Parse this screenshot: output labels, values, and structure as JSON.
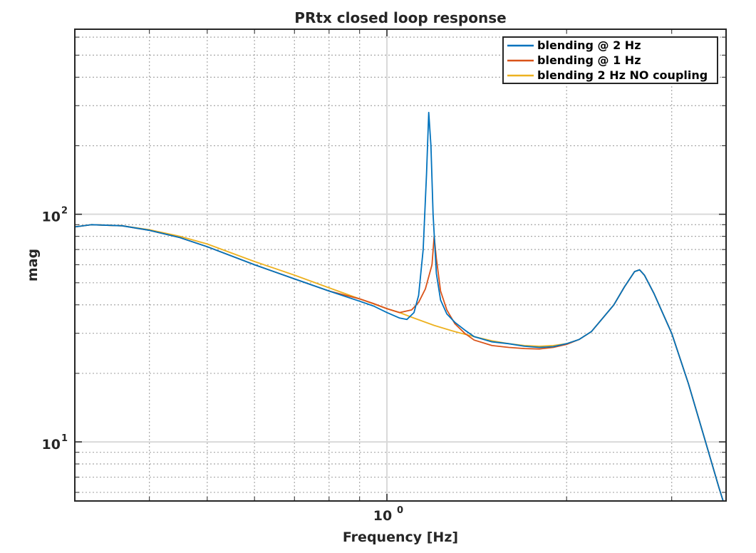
{
  "chart_data": {
    "type": "line",
    "title": "PRtx closed loop response",
    "xlabel": "Frequency [Hz]",
    "ylabel": "mag",
    "xscale": "log",
    "yscale": "log",
    "xlim": [
      0.3,
      3.7
    ],
    "ylim": [
      5.5,
      650
    ],
    "grid": true,
    "legend_position": "top-right",
    "x_ticks": [
      {
        "base": "10",
        "exp": "0",
        "value": 1
      }
    ],
    "y_ticks": [
      {
        "base": "10",
        "exp": "1",
        "value": 10
      },
      {
        "base": "10",
        "exp": "2",
        "value": 100
      }
    ],
    "series": [
      {
        "name": "blending @ 2 Hz",
        "color": "#0072BD",
        "points": [
          [
            0.3,
            88
          ],
          [
            0.32,
            90
          ],
          [
            0.36,
            89
          ],
          [
            0.4,
            85
          ],
          [
            0.45,
            79
          ],
          [
            0.5,
            72
          ],
          [
            0.6,
            60
          ],
          [
            0.7,
            52
          ],
          [
            0.8,
            46
          ],
          [
            0.9,
            41.5
          ],
          [
            0.95,
            39.5
          ],
          [
            1.0,
            37
          ],
          [
            1.05,
            35
          ],
          [
            1.08,
            34.5
          ],
          [
            1.11,
            37
          ],
          [
            1.13,
            44
          ],
          [
            1.15,
            70
          ],
          [
            1.165,
            150
          ],
          [
            1.175,
            280
          ],
          [
            1.185,
            200
          ],
          [
            1.195,
            100
          ],
          [
            1.21,
            55
          ],
          [
            1.23,
            42
          ],
          [
            1.26,
            36.5
          ],
          [
            1.3,
            33.5
          ],
          [
            1.35,
            31
          ],
          [
            1.4,
            29
          ],
          [
            1.5,
            27.5
          ],
          [
            1.6,
            27
          ],
          [
            1.7,
            26.3
          ],
          [
            1.8,
            26
          ],
          [
            1.9,
            26.2
          ],
          [
            2.0,
            27
          ],
          [
            2.1,
            28.2
          ],
          [
            2.2,
            30.5
          ],
          [
            2.3,
            35
          ],
          [
            2.4,
            40
          ],
          [
            2.5,
            48
          ],
          [
            2.6,
            56
          ],
          [
            2.65,
            57
          ],
          [
            2.7,
            54
          ],
          [
            2.8,
            45
          ],
          [
            3.0,
            30
          ],
          [
            3.2,
            18
          ],
          [
            3.4,
            10.5
          ],
          [
            3.6,
            6.3
          ],
          [
            3.7,
            5.0
          ]
        ]
      },
      {
        "name": "blending @ 1 Hz",
        "color": "#D95319",
        "points": [
          [
            0.3,
            88
          ],
          [
            0.32,
            90
          ],
          [
            0.36,
            89
          ],
          [
            0.4,
            85
          ],
          [
            0.45,
            79
          ],
          [
            0.5,
            72
          ],
          [
            0.6,
            60
          ],
          [
            0.7,
            52
          ],
          [
            0.8,
            46
          ],
          [
            0.9,
            42.5
          ],
          [
            0.95,
            40.5
          ],
          [
            1.0,
            38.5
          ],
          [
            1.05,
            37
          ],
          [
            1.1,
            38
          ],
          [
            1.13,
            41
          ],
          [
            1.16,
            47
          ],
          [
            1.19,
            60
          ],
          [
            1.2,
            80
          ],
          [
            1.21,
            64
          ],
          [
            1.23,
            46
          ],
          [
            1.26,
            38
          ],
          [
            1.3,
            33
          ],
          [
            1.35,
            30
          ],
          [
            1.4,
            28
          ],
          [
            1.5,
            26.5
          ],
          [
            1.6,
            26
          ],
          [
            1.7,
            25.7
          ],
          [
            1.8,
            25.6
          ],
          [
            1.9,
            26
          ],
          [
            2.0,
            26.8
          ],
          [
            2.1,
            28.2
          ],
          [
            2.2,
            30.5
          ],
          [
            2.3,
            35
          ],
          [
            2.4,
            40
          ],
          [
            2.5,
            48
          ],
          [
            2.6,
            56
          ],
          [
            2.65,
            57
          ],
          [
            2.7,
            54
          ],
          [
            2.8,
            45
          ],
          [
            3.0,
            30
          ],
          [
            3.2,
            18
          ],
          [
            3.4,
            10.5
          ],
          [
            3.6,
            6.3
          ],
          [
            3.7,
            5.0
          ]
        ]
      },
      {
        "name": "blending 2 Hz NO coupling",
        "color": "#EDB120",
        "points": [
          [
            0.3,
            88
          ],
          [
            0.32,
            90
          ],
          [
            0.36,
            89
          ],
          [
            0.4,
            85.5
          ],
          [
            0.45,
            80
          ],
          [
            0.5,
            74
          ],
          [
            0.6,
            62
          ],
          [
            0.7,
            54
          ],
          [
            0.8,
            47.5
          ],
          [
            0.9,
            42.5
          ],
          [
            1.0,
            38.5
          ],
          [
            1.05,
            37
          ],
          [
            1.1,
            35.3
          ],
          [
            1.2,
            32.5
          ],
          [
            1.3,
            30.5
          ],
          [
            1.4,
            29
          ],
          [
            1.5,
            27.8
          ],
          [
            1.6,
            27
          ],
          [
            1.7,
            26.5
          ],
          [
            1.8,
            26.3
          ],
          [
            1.9,
            26.5
          ],
          [
            2.0,
            27
          ],
          [
            2.1,
            28.2
          ],
          [
            2.2,
            30.5
          ],
          [
            2.3,
            35
          ],
          [
            2.4,
            40
          ],
          [
            2.5,
            48
          ],
          [
            2.6,
            56
          ],
          [
            2.65,
            57
          ],
          [
            2.7,
            54
          ],
          [
            2.8,
            45
          ],
          [
            3.0,
            30
          ],
          [
            3.2,
            18
          ],
          [
            3.4,
            10.5
          ],
          [
            3.6,
            6.3
          ],
          [
            3.7,
            5.0
          ]
        ]
      }
    ]
  }
}
